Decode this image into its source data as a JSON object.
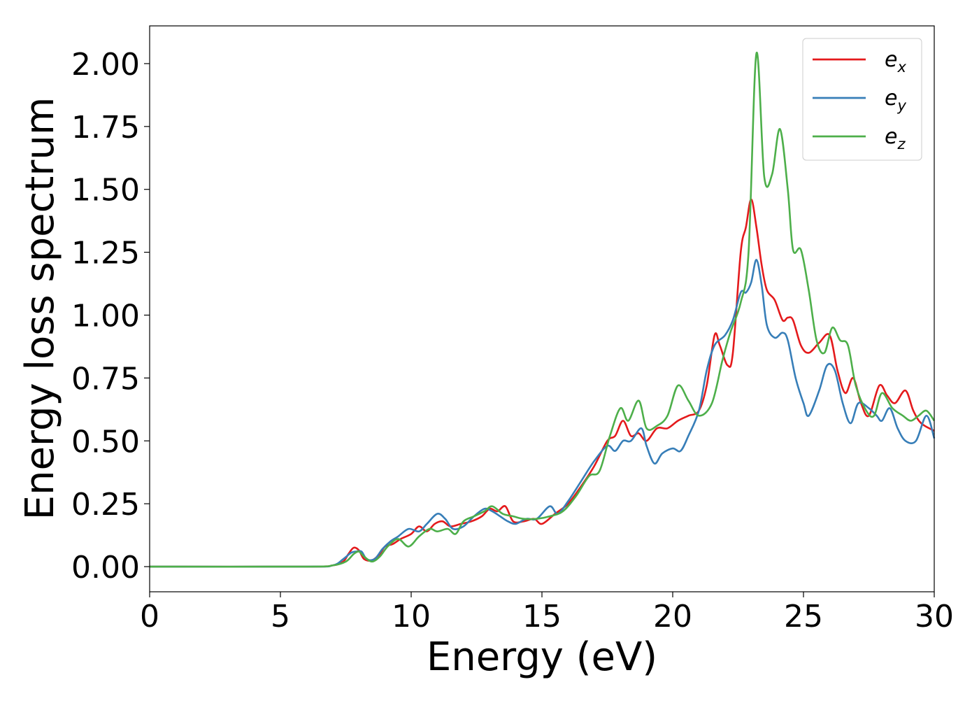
{
  "chart_data": {
    "type": "line",
    "title": "",
    "xlabel": "Energy (eV)",
    "ylabel": "Energy loss spectrum",
    "xlim": [
      0,
      30
    ],
    "ylim": [
      -0.1,
      2.15
    ],
    "xticks": [
      0,
      5,
      10,
      15,
      20,
      25,
      30
    ],
    "xtick_labels": [
      "0",
      "5",
      "10",
      "15",
      "20",
      "25",
      "30"
    ],
    "yticks": [
      0.0,
      0.25,
      0.5,
      0.75,
      1.0,
      1.25,
      1.5,
      1.75,
      2.0
    ],
    "ytick_labels": [
      "0.00",
      "0.25",
      "0.50",
      "0.75",
      "1.00",
      "1.25",
      "1.50",
      "1.75",
      "2.00"
    ],
    "grid": false,
    "legend_position": "top-right",
    "series": [
      {
        "name": "e_x",
        "legend_symbol": "e",
        "legend_subscript": "x",
        "color": "#e41a1c",
        "points": [
          [
            0,
            0
          ],
          [
            6,
            0
          ],
          [
            7,
            0.005
          ],
          [
            7.4,
            0.02
          ],
          [
            7.6,
            0.05
          ],
          [
            7.8,
            0.075
          ],
          [
            8.0,
            0.065
          ],
          [
            8.2,
            0.03
          ],
          [
            8.5,
            0.025
          ],
          [
            8.8,
            0.05
          ],
          [
            9.0,
            0.08
          ],
          [
            9.3,
            0.09
          ],
          [
            9.6,
            0.11
          ],
          [
            10.0,
            0.13
          ],
          [
            10.3,
            0.16
          ],
          [
            10.6,
            0.14
          ],
          [
            10.9,
            0.17
          ],
          [
            11.2,
            0.18
          ],
          [
            11.5,
            0.16
          ],
          [
            11.9,
            0.17
          ],
          [
            12.3,
            0.18
          ],
          [
            12.7,
            0.2
          ],
          [
            13.0,
            0.23
          ],
          [
            13.3,
            0.22
          ],
          [
            13.6,
            0.24
          ],
          [
            13.9,
            0.18
          ],
          [
            14.3,
            0.18
          ],
          [
            14.7,
            0.19
          ],
          [
            15.0,
            0.17
          ],
          [
            15.5,
            0.21
          ],
          [
            16.0,
            0.25
          ],
          [
            16.5,
            0.32
          ],
          [
            17.0,
            0.4
          ],
          [
            17.5,
            0.5
          ],
          [
            17.8,
            0.52
          ],
          [
            18.1,
            0.58
          ],
          [
            18.4,
            0.52
          ],
          [
            18.7,
            0.53
          ],
          [
            19.0,
            0.5
          ],
          [
            19.4,
            0.55
          ],
          [
            19.8,
            0.55
          ],
          [
            20.2,
            0.58
          ],
          [
            20.6,
            0.6
          ],
          [
            21.0,
            0.62
          ],
          [
            21.3,
            0.72
          ],
          [
            21.6,
            0.92
          ],
          [
            21.8,
            0.88
          ],
          [
            22.1,
            0.8
          ],
          [
            22.3,
            0.85
          ],
          [
            22.6,
            1.25
          ],
          [
            22.8,
            1.35
          ],
          [
            23.0,
            1.46
          ],
          [
            23.2,
            1.35
          ],
          [
            23.4,
            1.2
          ],
          [
            23.6,
            1.1
          ],
          [
            23.9,
            1.06
          ],
          [
            24.2,
            0.98
          ],
          [
            24.4,
            0.99
          ],
          [
            24.6,
            0.98
          ],
          [
            24.9,
            0.88
          ],
          [
            25.2,
            0.85
          ],
          [
            25.6,
            0.89
          ],
          [
            26.0,
            0.92
          ],
          [
            26.3,
            0.78
          ],
          [
            26.6,
            0.69
          ],
          [
            26.9,
            0.75
          ],
          [
            27.2,
            0.65
          ],
          [
            27.5,
            0.6
          ],
          [
            27.9,
            0.72
          ],
          [
            28.2,
            0.68
          ],
          [
            28.5,
            0.65
          ],
          [
            28.9,
            0.7
          ],
          [
            29.2,
            0.62
          ],
          [
            29.5,
            0.57
          ],
          [
            30.0,
            0.54
          ]
        ]
      },
      {
        "name": "e_y",
        "legend_symbol": "e",
        "legend_subscript": "y",
        "color": "#377eb8",
        "points": [
          [
            0,
            0
          ],
          [
            6,
            0
          ],
          [
            7,
            0.005
          ],
          [
            7.4,
            0.03
          ],
          [
            7.7,
            0.055
          ],
          [
            7.9,
            0.06
          ],
          [
            8.1,
            0.06
          ],
          [
            8.3,
            0.03
          ],
          [
            8.6,
            0.03
          ],
          [
            8.9,
            0.07
          ],
          [
            9.2,
            0.1
          ],
          [
            9.5,
            0.12
          ],
          [
            9.9,
            0.15
          ],
          [
            10.3,
            0.14
          ],
          [
            10.6,
            0.17
          ],
          [
            11.0,
            0.21
          ],
          [
            11.3,
            0.19
          ],
          [
            11.6,
            0.15
          ],
          [
            12.0,
            0.16
          ],
          [
            12.4,
            0.2
          ],
          [
            12.8,
            0.23
          ],
          [
            13.1,
            0.22
          ],
          [
            13.4,
            0.2
          ],
          [
            13.7,
            0.18
          ],
          [
            14.0,
            0.17
          ],
          [
            14.4,
            0.19
          ],
          [
            14.8,
            0.19
          ],
          [
            15.3,
            0.24
          ],
          [
            15.6,
            0.21
          ],
          [
            16.0,
            0.26
          ],
          [
            16.5,
            0.34
          ],
          [
            17.0,
            0.42
          ],
          [
            17.5,
            0.48
          ],
          [
            17.8,
            0.46
          ],
          [
            18.1,
            0.5
          ],
          [
            18.4,
            0.5
          ],
          [
            18.8,
            0.55
          ],
          [
            19.0,
            0.48
          ],
          [
            19.3,
            0.41
          ],
          [
            19.6,
            0.45
          ],
          [
            20.0,
            0.47
          ],
          [
            20.3,
            0.46
          ],
          [
            20.6,
            0.52
          ],
          [
            21.0,
            0.62
          ],
          [
            21.3,
            0.78
          ],
          [
            21.6,
            0.88
          ],
          [
            22.0,
            0.92
          ],
          [
            22.3,
            0.98
          ],
          [
            22.6,
            1.09
          ],
          [
            22.8,
            1.09
          ],
          [
            23.0,
            1.13
          ],
          [
            23.2,
            1.22
          ],
          [
            23.4,
            1.12
          ],
          [
            23.6,
            0.96
          ],
          [
            23.9,
            0.91
          ],
          [
            24.2,
            0.93
          ],
          [
            24.4,
            0.9
          ],
          [
            24.7,
            0.75
          ],
          [
            25.0,
            0.65
          ],
          [
            25.2,
            0.6
          ],
          [
            25.6,
            0.7
          ],
          [
            25.9,
            0.8
          ],
          [
            26.2,
            0.78
          ],
          [
            26.5,
            0.65
          ],
          [
            26.8,
            0.57
          ],
          [
            27.1,
            0.65
          ],
          [
            27.5,
            0.63
          ],
          [
            27.8,
            0.6
          ],
          [
            28.0,
            0.58
          ],
          [
            28.3,
            0.63
          ],
          [
            28.6,
            0.55
          ],
          [
            28.9,
            0.5
          ],
          [
            29.3,
            0.5
          ],
          [
            29.7,
            0.6
          ],
          [
            30.0,
            0.51
          ]
        ]
      },
      {
        "name": "e_z",
        "legend_symbol": "e",
        "legend_subscript": "z",
        "color": "#4daf4a",
        "points": [
          [
            0,
            0
          ],
          [
            6,
            0
          ],
          [
            7,
            0.005
          ],
          [
            7.5,
            0.02
          ],
          [
            7.8,
            0.05
          ],
          [
            8.0,
            0.06
          ],
          [
            8.2,
            0.04
          ],
          [
            8.5,
            0.02
          ],
          [
            8.8,
            0.04
          ],
          [
            9.1,
            0.08
          ],
          [
            9.5,
            0.11
          ],
          [
            9.9,
            0.08
          ],
          [
            10.3,
            0.12
          ],
          [
            10.7,
            0.15
          ],
          [
            11.0,
            0.14
          ],
          [
            11.4,
            0.15
          ],
          [
            11.7,
            0.13
          ],
          [
            12.0,
            0.18
          ],
          [
            12.4,
            0.2
          ],
          [
            12.8,
            0.22
          ],
          [
            13.1,
            0.24
          ],
          [
            13.5,
            0.21
          ],
          [
            13.9,
            0.2
          ],
          [
            14.3,
            0.19
          ],
          [
            14.8,
            0.19
          ],
          [
            15.3,
            0.2
          ],
          [
            15.8,
            0.22
          ],
          [
            16.3,
            0.28
          ],
          [
            16.8,
            0.36
          ],
          [
            17.2,
            0.38
          ],
          [
            17.6,
            0.52
          ],
          [
            18.0,
            0.63
          ],
          [
            18.3,
            0.58
          ],
          [
            18.7,
            0.66
          ],
          [
            19.0,
            0.55
          ],
          [
            19.4,
            0.56
          ],
          [
            19.8,
            0.6
          ],
          [
            20.2,
            0.72
          ],
          [
            20.6,
            0.66
          ],
          [
            21.0,
            0.6
          ],
          [
            21.5,
            0.65
          ],
          [
            21.9,
            0.82
          ],
          [
            22.2,
            0.93
          ],
          [
            22.6,
            1.05
          ],
          [
            22.9,
            1.25
          ],
          [
            23.2,
            2.04
          ],
          [
            23.5,
            1.55
          ],
          [
            23.8,
            1.56
          ],
          [
            24.1,
            1.74
          ],
          [
            24.4,
            1.5
          ],
          [
            24.6,
            1.26
          ],
          [
            24.9,
            1.26
          ],
          [
            25.2,
            1.1
          ],
          [
            25.5,
            0.9
          ],
          [
            25.8,
            0.85
          ],
          [
            26.1,
            0.95
          ],
          [
            26.4,
            0.9
          ],
          [
            26.7,
            0.88
          ],
          [
            27.0,
            0.72
          ],
          [
            27.4,
            0.62
          ],
          [
            27.7,
            0.6
          ],
          [
            28.0,
            0.69
          ],
          [
            28.4,
            0.63
          ],
          [
            28.8,
            0.6
          ],
          [
            29.1,
            0.58
          ],
          [
            29.4,
            0.6
          ],
          [
            29.7,
            0.62
          ],
          [
            30.0,
            0.58
          ]
        ]
      }
    ]
  }
}
